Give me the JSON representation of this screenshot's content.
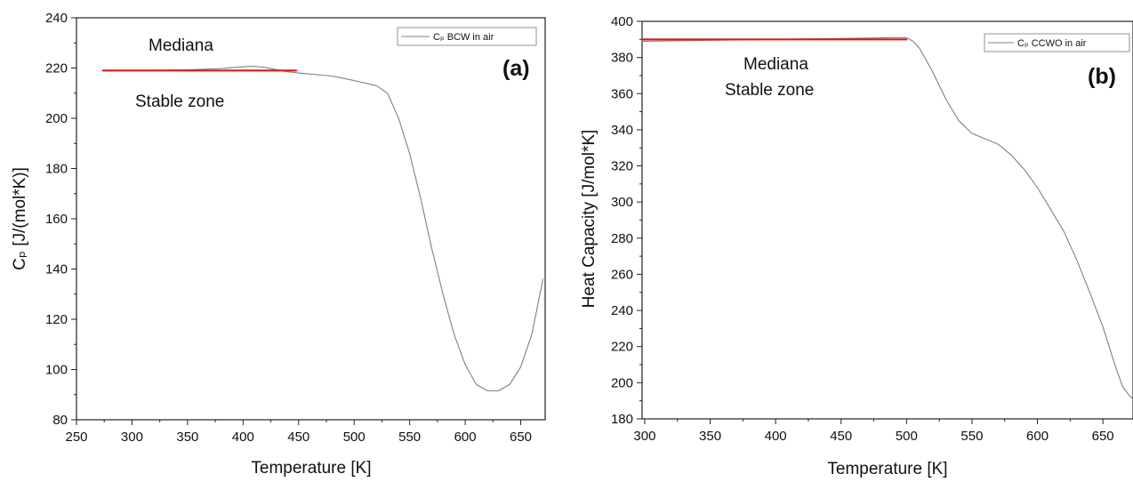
{
  "chart_data": [
    {
      "type": "line",
      "panel_label": "(a)",
      "xlabel": "Temperature [K]",
      "ylabel": "Cₚ [J/(mol*K)]",
      "xlim": [
        250,
        672
      ],
      "ylim": [
        80,
        240
      ],
      "xticks": [
        250,
        300,
        350,
        400,
        450,
        500,
        550,
        600,
        650
      ],
      "yticks": [
        80,
        100,
        120,
        140,
        160,
        180,
        200,
        220,
        240
      ],
      "legend_position": "top-right",
      "annotations": [
        "Mediana",
        "Stable zone"
      ],
      "series": [
        {
          "name": "Cₚ BCW in air",
          "color": "#808080",
          "x": [
            273,
            300,
            350,
            380,
            400,
            410,
            420,
            440,
            450,
            480,
            500,
            520,
            530,
            540,
            550,
            560,
            570,
            580,
            590,
            600,
            610,
            620,
            630,
            640,
            650,
            660,
            665,
            670
          ],
          "y": [
            219,
            219,
            219.3,
            219.8,
            220.5,
            220.7,
            220.2,
            218.5,
            218,
            216.8,
            215,
            213,
            210,
            200,
            186,
            168,
            148,
            130,
            114,
            102,
            94,
            91.5,
            91.5,
            94,
            101,
            114,
            125,
            136
          ]
        },
        {
          "name": "Mediana",
          "color": "#e01818",
          "x": [
            274,
            448
          ],
          "y": [
            219,
            219
          ]
        }
      ]
    },
    {
      "type": "line",
      "panel_label": "(b)",
      "xlabel": "Temperature [K]",
      "ylabel": "Heat Capacity [J/mol*K]",
      "xlim": [
        298,
        673
      ],
      "ylim": [
        180,
        400
      ],
      "xticks": [
        300,
        350,
        400,
        450,
        500,
        550,
        600,
        650
      ],
      "yticks": [
        180,
        200,
        220,
        240,
        260,
        280,
        300,
        320,
        340,
        360,
        380,
        400
      ],
      "legend_position": "top-right",
      "annotations": [
        "Mediana",
        "Stable zone"
      ],
      "series": [
        {
          "name": "Cₚ CCWO in air",
          "color": "#808080",
          "x": [
            298,
            350,
            400,
            450,
            490,
            500,
            505,
            510,
            520,
            530,
            540,
            550,
            560,
            570,
            580,
            590,
            600,
            610,
            620,
            630,
            640,
            650,
            660,
            665,
            670,
            673
          ],
          "y": [
            389,
            389.5,
            390,
            390.5,
            391,
            391,
            389,
            385,
            372,
            357,
            345,
            338,
            335,
            332,
            326,
            318,
            308,
            296,
            284,
            268,
            250,
            231,
            208,
            198,
            193,
            191
          ]
        },
        {
          "name": "Mediana",
          "color": "#e01818",
          "x": [
            298,
            500
          ],
          "y": [
            390,
            390
          ]
        }
      ]
    }
  ]
}
